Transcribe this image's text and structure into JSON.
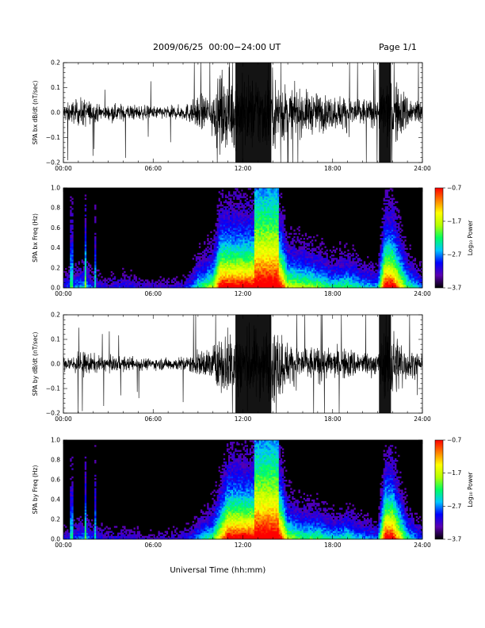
{
  "header": {
    "date_range": "2009/06/25  00:00−24:00 UT",
    "page": "Page 1/1"
  },
  "x_axis_title": "Universal Time (hh:mm)",
  "colors": {
    "trace": "#000000",
    "spectrogram_background": "#000000",
    "colormap": [
      "#000000",
      "#5a00b0",
      "#0000ff",
      "#00c8ff",
      "#00ff60",
      "#b4ff00",
      "#ffff00",
      "#ff8000",
      "#ff0000"
    ]
  },
  "chart_data": [
    {
      "type": "line",
      "ylabel": "SPA bx dB/dt (nT/sec)",
      "ylim": [
        -0.2,
        0.2
      ],
      "yticks": [
        "0.2",
        "0.1",
        "0.0",
        "−0.1",
        "−0.2"
      ],
      "xlim": [
        0,
        24
      ],
      "xticks": [
        "00:00",
        "06:00",
        "12:00",
        "18:00",
        "24:00"
      ],
      "activity_envelope": {
        "hours": [
          0,
          1.5,
          2,
          3,
          4,
          5,
          6,
          7,
          8,
          8.5,
          9,
          10,
          10.5,
          11,
          11.5,
          12,
          13,
          14,
          14.5,
          15,
          16,
          17,
          18,
          19,
          20,
          21,
          21.5,
          22,
          23,
          24
        ],
        "amplitude": [
          0.05,
          0.08,
          0.05,
          0.04,
          0.05,
          0.04,
          0.035,
          0.035,
          0.04,
          0.06,
          0.09,
          0.12,
          0.2,
          0.2,
          0.2,
          0.2,
          0.2,
          0.2,
          0.2,
          0.13,
          0.12,
          0.11,
          0.09,
          0.1,
          0.08,
          0.07,
          0.2,
          0.2,
          0.1,
          0.06
        ]
      }
    },
    {
      "type": "heatmap",
      "ylabel": "SPA bx Freq (Hz)",
      "ylim": [
        0.0,
        1.0
      ],
      "yticks": [
        "1.0",
        "0.8",
        "0.6",
        "0.4",
        "0.2",
        "0.0"
      ],
      "xlim": [
        0,
        24
      ],
      "xticks": [
        "00:00",
        "06:00",
        "12:00",
        "18:00",
        "24:00"
      ],
      "colorbar": {
        "label": "Log₁₀ Power",
        "range": [
          -3.7,
          -0.7
        ],
        "ticks": [
          "−0.7",
          "−1.7",
          "−2.7",
          "−3.7"
        ]
      }
    },
    {
      "type": "line",
      "ylabel": "SPA by dB/dt (nT/sec)",
      "ylim": [
        -0.2,
        0.2
      ],
      "yticks": [
        "0.2",
        "0.1",
        "0.0",
        "−0.1",
        "−0.2"
      ],
      "xlim": [
        0,
        24
      ],
      "xticks": [
        "00:00",
        "06:00",
        "12:00",
        "18:00",
        "24:00"
      ],
      "activity_envelope": {
        "hours": [
          0,
          1.5,
          2,
          3,
          4,
          5,
          6,
          7,
          8,
          8.5,
          9,
          10,
          10.5,
          11,
          11.5,
          12,
          13,
          14,
          14.5,
          15,
          16,
          17,
          18,
          19,
          20,
          21,
          21.5,
          22,
          23,
          24
        ],
        "amplitude": [
          0.04,
          0.07,
          0.05,
          0.04,
          0.04,
          0.035,
          0.03,
          0.035,
          0.04,
          0.05,
          0.07,
          0.1,
          0.15,
          0.2,
          0.2,
          0.2,
          0.2,
          0.2,
          0.2,
          0.12,
          0.1,
          0.1,
          0.08,
          0.09,
          0.07,
          0.06,
          0.2,
          0.2,
          0.09,
          0.05
        ]
      }
    },
    {
      "type": "heatmap",
      "ylabel": "SPA by Freq (Hz)",
      "ylim": [
        0.0,
        1.0
      ],
      "yticks": [
        "1.0",
        "0.8",
        "0.6",
        "0.4",
        "0.2",
        "0.0"
      ],
      "xlim": [
        0,
        24
      ],
      "xticks": [
        "00:00",
        "06:00",
        "12:00",
        "18:00",
        "24:00"
      ],
      "colorbar": {
        "label": "Log₁₀ Power",
        "range": [
          -3.7,
          -0.7
        ],
        "ticks": [
          "−0.7",
          "−1.7",
          "−2.7",
          "−3.7"
        ]
      }
    }
  ]
}
